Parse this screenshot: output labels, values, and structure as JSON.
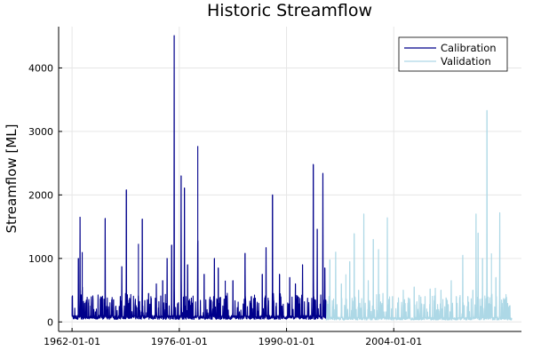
{
  "chart_data": {
    "type": "line",
    "title": "Historic Streamflow",
    "xlabel": "",
    "ylabel": "Streamflow [ML]",
    "x_axis_type": "date",
    "x_tick_labels": [
      "1962-01-01",
      "1976-01-01",
      "1990-01-01",
      "2004-01-01"
    ],
    "x_ticks": [
      "1962-01-01",
      "1976-01-01",
      "1990-01-01",
      "2004-01-01"
    ],
    "xlim": [
      "1960-04-01",
      "2020-09-01"
    ],
    "y_ticks": [
      0,
      1000,
      2000,
      3000,
      4000
    ],
    "ylim": [
      -150,
      4650
    ],
    "grid": true,
    "legend_position": "top-right",
    "series": [
      {
        "name": "Calibration",
        "color": "#00008B",
        "x_range": [
          "1962-01-01",
          "1995-03-01"
        ],
        "baseline": 80,
        "peaks": [
          {
            "x": "1962-01-10",
            "y": 400
          },
          {
            "x": "1962-11-01",
            "y": 1000
          },
          {
            "x": "1963-01-15",
            "y": 1650
          },
          {
            "x": "1963-05-01",
            "y": 1100
          },
          {
            "x": "1964-03-01",
            "y": 300
          },
          {
            "x": "1966-05-01",
            "y": 1630
          },
          {
            "x": "1967-06-01",
            "y": 350
          },
          {
            "x": "1968-07-01",
            "y": 870
          },
          {
            "x": "1969-02-01",
            "y": 2080
          },
          {
            "x": "1970-09-01",
            "y": 1230
          },
          {
            "x": "1971-03-01",
            "y": 1620
          },
          {
            "x": "1972-01-01",
            "y": 450
          },
          {
            "x": "1973-01-01",
            "y": 600
          },
          {
            "x": "1973-11-01",
            "y": 650
          },
          {
            "x": "1974-06-01",
            "y": 1000
          },
          {
            "x": "1975-01-01",
            "y": 1210
          },
          {
            "x": "1975-05-01",
            "y": 4510
          },
          {
            "x": "1976-04-01",
            "y": 2300
          },
          {
            "x": "1976-09-01",
            "y": 2110
          },
          {
            "x": "1977-02-01",
            "y": 900
          },
          {
            "x": "1978-06-01",
            "y": 2770
          },
          {
            "x": "1979-04-01",
            "y": 750
          },
          {
            "x": "1980-08-01",
            "y": 1000
          },
          {
            "x": "1981-02-01",
            "y": 850
          },
          {
            "x": "1982-01-01",
            "y": 650
          },
          {
            "x": "1983-01-01",
            "y": 650
          },
          {
            "x": "1984-08-01",
            "y": 1080
          },
          {
            "x": "1985-06-01",
            "y": 400
          },
          {
            "x": "1986-11-01",
            "y": 750
          },
          {
            "x": "1987-05-01",
            "y": 1170
          },
          {
            "x": "1988-03-01",
            "y": 2000
          },
          {
            "x": "1989-02-01",
            "y": 750
          },
          {
            "x": "1990-06-01",
            "y": 700
          },
          {
            "x": "1991-03-01",
            "y": 600
          },
          {
            "x": "1992-02-01",
            "y": 900
          },
          {
            "x": "1993-07-01",
            "y": 2480
          },
          {
            "x": "1994-01-01",
            "y": 1460
          },
          {
            "x": "1994-10-01",
            "y": 2340
          },
          {
            "x": "1995-01-01",
            "y": 850
          }
        ]
      },
      {
        "name": "Validation",
        "color": "#ADD8E6",
        "x_range": [
          "1995-03-01",
          "2019-06-01"
        ],
        "baseline": 60,
        "peaks": [
          {
            "x": "1995-09-01",
            "y": 980
          },
          {
            "x": "1996-06-01",
            "y": 1100
          },
          {
            "x": "1997-03-01",
            "y": 600
          },
          {
            "x": "1997-10-01",
            "y": 750
          },
          {
            "x": "1998-04-01",
            "y": 950
          },
          {
            "x": "1998-11-01",
            "y": 1390
          },
          {
            "x": "1999-06-01",
            "y": 500
          },
          {
            "x": "2000-02-01",
            "y": 1700
          },
          {
            "x": "2000-09-01",
            "y": 650
          },
          {
            "x": "2001-05-01",
            "y": 1300
          },
          {
            "x": "2002-01-01",
            "y": 1140
          },
          {
            "x": "2002-08-01",
            "y": 450
          },
          {
            "x": "2003-03-01",
            "y": 1640
          },
          {
            "x": "2003-11-01",
            "y": 400
          },
          {
            "x": "2004-07-01",
            "y": 300
          },
          {
            "x": "2005-04-01",
            "y": 500
          },
          {
            "x": "2005-12-01",
            "y": 380
          },
          {
            "x": "2006-09-01",
            "y": 550
          },
          {
            "x": "2007-05-01",
            "y": 420
          },
          {
            "x": "2008-02-01",
            "y": 400
          },
          {
            "x": "2008-10-01",
            "y": 520
          },
          {
            "x": "2009-06-01",
            "y": 530
          },
          {
            "x": "2010-03-01",
            "y": 500
          },
          {
            "x": "2010-11-01",
            "y": 350
          },
          {
            "x": "2011-07-01",
            "y": 650
          },
          {
            "x": "2012-03-01",
            "y": 400
          },
          {
            "x": "2013-01-01",
            "y": 1050
          },
          {
            "x": "2013-09-01",
            "y": 400
          },
          {
            "x": "2014-05-01",
            "y": 500
          },
          {
            "x": "2014-10-01",
            "y": 1700
          },
          {
            "x": "2015-01-01",
            "y": 1400
          },
          {
            "x": "2015-08-01",
            "y": 1000
          },
          {
            "x": "2016-03-01",
            "y": 3330
          },
          {
            "x": "2016-10-01",
            "y": 1080
          },
          {
            "x": "2017-05-01",
            "y": 700
          },
          {
            "x": "2017-11-01",
            "y": 1720
          },
          {
            "x": "2018-06-01",
            "y": 350
          },
          {
            "x": "2019-02-01",
            "y": 250
          }
        ]
      }
    ]
  }
}
